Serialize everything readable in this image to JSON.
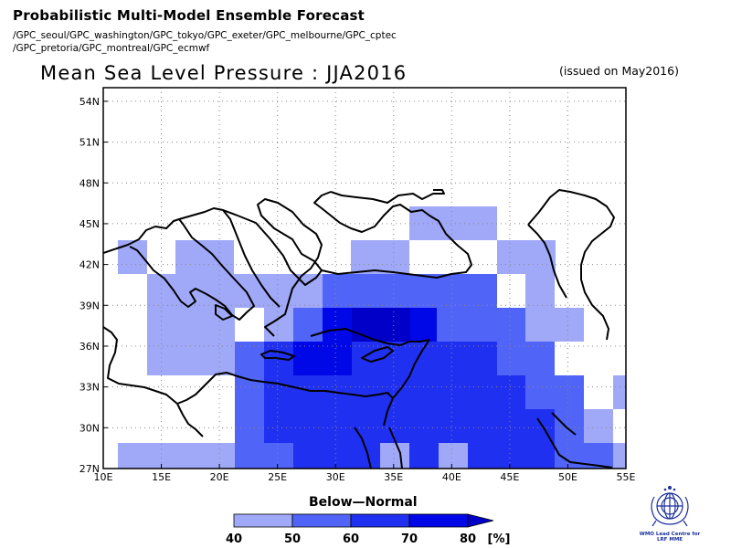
{
  "header": {
    "title": "Probabilistic Multi-Model Ensemble Forecast",
    "sources_line1": "/GPC_seoul/GPC_washington/GPC_tokyo/GPC_exeter/GPC_melbourne/GPC_cptec",
    "sources_line2": "/GPC_pretoria/GPC_montreal/GPC_ecmwf"
  },
  "map": {
    "subtitle": "Mean Sea Level Pressure : JJA2016",
    "issued": "(issued on May2016)",
    "lon_range": [
      10,
      55
    ],
    "lat_range": [
      27,
      55
    ],
    "x_ticks": [
      "10E",
      "15E",
      "20E",
      "25E",
      "30E",
      "35E",
      "40E",
      "45E",
      "50E",
      "55E"
    ],
    "y_ticks": [
      "27N",
      "30N",
      "33N",
      "36N",
      "39N",
      "42N",
      "45N",
      "48N",
      "51N",
      "54N"
    ],
    "grid": "dotted",
    "cell_size_deg": 2.5
  },
  "legend": {
    "title": "Below—Normal",
    "labels": [
      "40",
      "50",
      "60",
      "70",
      "80"
    ],
    "unit": "[%]",
    "colors": [
      "#a0a8f8",
      "#5064f8",
      "#2030f0",
      "#0008e8",
      "#0000c8"
    ]
  },
  "probability_field": {
    "category": "Below-Normal",
    "rows": [
      {
        "lat_top": 43.6,
        "lat_bottom": 41.0,
        "cells": [
          [
            11.25,
            13.75,
            "#a0a8f8"
          ],
          [
            16.25,
            21.25,
            "#a0a8f8"
          ],
          [
            31.25,
            36.25,
            "#a0a8f8"
          ],
          [
            48.75,
            48.75,
            "#a0a8f8"
          ]
        ]
      },
      {
        "lat_top": 41.0,
        "lat_bottom": 38.5,
        "cells": [
          [
            13.75,
            21.25,
            "#a0a8f8"
          ],
          [
            23.75,
            36.25,
            "#a0a8f8"
          ],
          [
            31.25,
            48.75,
            "#5064f8"
          ],
          [
            43.75,
            46.25,
            "#a0a8f8"
          ]
        ]
      },
      {
        "lat_top": 38.5,
        "lat_bottom": 36.0,
        "cells": [
          [
            13.75,
            23.75,
            "#a0a8f8"
          ],
          [
            26.25,
            28.75,
            "#5064f8"
          ],
          [
            28.75,
            36.25,
            "#2030f0"
          ],
          [
            31.25,
            36.25,
            "#0008e8"
          ],
          [
            38.75,
            46.25,
            "#5064f8"
          ],
          [
            46.25,
            48.75,
            "#a0a8f8"
          ]
        ]
      },
      {
        "lat_top": 36.0,
        "lat_bottom": 33.5,
        "cells": [
          [
            13.75,
            21.25,
            "#a0a8f8"
          ],
          [
            21.25,
            28.75,
            "#5064f8"
          ],
          [
            28.75,
            43.75,
            "#2030f0"
          ],
          [
            43.75,
            46.25,
            "#5064f8"
          ]
        ]
      },
      {
        "lat_top": 33.5,
        "lat_bottom": 31.0,
        "cells": [
          [
            21.25,
            23.75,
            "#5064f8"
          ],
          [
            23.75,
            43.75,
            "#2030f0"
          ],
          [
            43.75,
            48.75,
            "#5064f8"
          ],
          [
            51.25,
            53.75,
            "#a0a8f8"
          ]
        ]
      },
      {
        "lat_top": 31.0,
        "lat_bottom": 28.5,
        "cells": [
          [
            21.25,
            23.75,
            "#5064f8"
          ],
          [
            23.75,
            46.25,
            "#2030f0"
          ],
          [
            46.25,
            48.75,
            "#5064f8"
          ],
          [
            48.75,
            51.25,
            "#a0a8f8"
          ]
        ]
      },
      {
        "lat_top": 28.5,
        "lat_bottom": 27.0,
        "cells": [
          [
            11.25,
            21.25,
            "#a0a8f8"
          ],
          [
            21.25,
            23.75,
            "#5064f8"
          ],
          [
            23.75,
            46.25,
            "#2030f0"
          ],
          [
            46.25,
            51.25,
            "#5064f8"
          ],
          [
            51.25,
            53.75,
            "#a0a8f8"
          ]
        ]
      }
    ]
  },
  "logo": {
    "icon": "wmo-emblem-icon",
    "text_line1": "WMO Lead Centre for",
    "text_line2": "LRF MME"
  }
}
